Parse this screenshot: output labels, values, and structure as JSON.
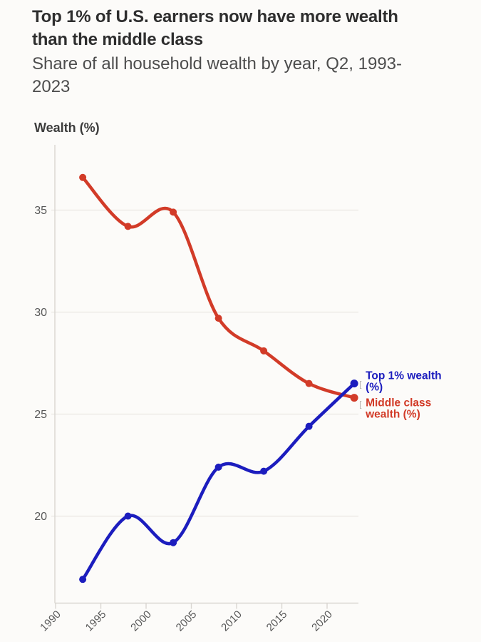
{
  "header": {
    "title_lines": [
      "Top 1% of U.S. earners now have more wealth",
      "than the middle class"
    ],
    "subtitle_lines": [
      "Share of all household wealth by year, Q2, 1993-",
      "2023"
    ]
  },
  "chart_data": {
    "type": "line",
    "title": "Top 1% of U.S. earners now have more wealth than the middle class",
    "subtitle": "Share of all household wealth by year, Q2, 1993-2023",
    "ylabel": "Wealth (%)",
    "xlabel": "",
    "x": [
      1993,
      1998,
      2003,
      2008,
      2013,
      2018,
      2023
    ],
    "series": [
      {
        "name": "Top 1% wealth (%)",
        "label_lines": [
          "Top 1% wealth",
          "(%)"
        ],
        "label_side": "above",
        "color": "#1c1dbe",
        "values": [
          16.9,
          20.0,
          18.7,
          22.4,
          22.2,
          24.4,
          26.5
        ]
      },
      {
        "name": "Middle class wealth (%)",
        "label_lines": [
          "Middle class",
          "wealth (%)"
        ],
        "label_side": "below",
        "color": "#d23b28",
        "values": [
          36.6,
          34.2,
          34.9,
          29.7,
          28.1,
          26.5,
          25.8
        ]
      }
    ],
    "xticks": [
      1990,
      1995,
      2000,
      2005,
      2010,
      2015,
      2020
    ],
    "yticks": [
      20,
      25,
      30,
      35
    ],
    "xlim": [
      1990,
      2023.6
    ],
    "ylim": [
      15.9,
      38.2
    ],
    "grid": "horizontal",
    "legend_position": "line-end-labels",
    "marker": "circle",
    "curve": "smooth",
    "colors": {
      "background": "#fcfbf9",
      "gridline": "#ece9e5",
      "axis": "#d9d6d1",
      "tick_text": "#585858",
      "bracket": "#b5b2ad"
    },
    "bracket_glyph": "["
  }
}
